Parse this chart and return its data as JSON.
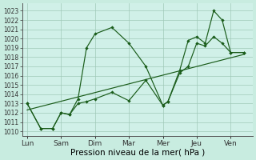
{
  "bg_outer": "#c8ece0",
  "bg_inner": "#d0f0e8",
  "grid_color": "#a0c8b8",
  "dark_green": "#1a5c1a",
  "xlabels": [
    "Lun",
    "Sam",
    "Dim",
    "Mar",
    "Mer",
    "Jeu",
    "Ven"
  ],
  "xlabel": "Pression niveau de la mer( hPa )",
  "xlabel_fontsize": 7.5,
  "ytick_fontsize": 5.5,
  "xtick_fontsize": 6.5,
  "ylim_lo": 1009.5,
  "ylim_hi": 1023.8,
  "xlim_lo": -0.15,
  "xlim_hi": 6.65,
  "yticks": [
    1010,
    1011,
    1012,
    1013,
    1014,
    1015,
    1016,
    1017,
    1018,
    1019,
    1020,
    1021,
    1022,
    1023
  ],
  "xtick_pos": [
    0,
    1,
    2,
    3,
    4,
    5,
    6
  ],
  "line1_x": [
    0.0,
    0.4,
    0.75,
    1.0,
    1.25,
    1.5,
    1.75,
    2.0,
    2.5,
    3.0,
    3.5,
    4.0,
    4.15,
    4.5,
    4.75,
    5.0,
    5.25,
    5.5,
    5.75,
    6.0,
    6.4
  ],
  "line1_y": [
    1013.0,
    1010.3,
    1010.3,
    1012.0,
    1011.8,
    1013.5,
    1019.0,
    1020.5,
    1021.2,
    1019.5,
    1017.0,
    1012.8,
    1013.2,
    1016.6,
    1019.8,
    1020.2,
    1019.5,
    1023.0,
    1022.0,
    1018.5,
    1018.5
  ],
  "line2_x": [
    0.0,
    0.4,
    0.75,
    1.0,
    1.25,
    1.5,
    1.75,
    2.0,
    2.5,
    3.0,
    3.5,
    4.0,
    4.15,
    4.5,
    4.75,
    5.0,
    5.25,
    5.5,
    5.75,
    6.0,
    6.4
  ],
  "line2_y": [
    1013.0,
    1010.3,
    1010.3,
    1012.0,
    1011.8,
    1013.0,
    1013.2,
    1013.5,
    1014.2,
    1013.3,
    1015.5,
    1012.8,
    1013.2,
    1016.3,
    1017.0,
    1019.5,
    1019.2,
    1020.2,
    1019.5,
    1018.5,
    1018.5
  ],
  "trend_x": [
    0.0,
    6.4
  ],
  "trend_y": [
    1012.3,
    1018.3
  ],
  "lw": 0.85,
  "ms": 2.2
}
